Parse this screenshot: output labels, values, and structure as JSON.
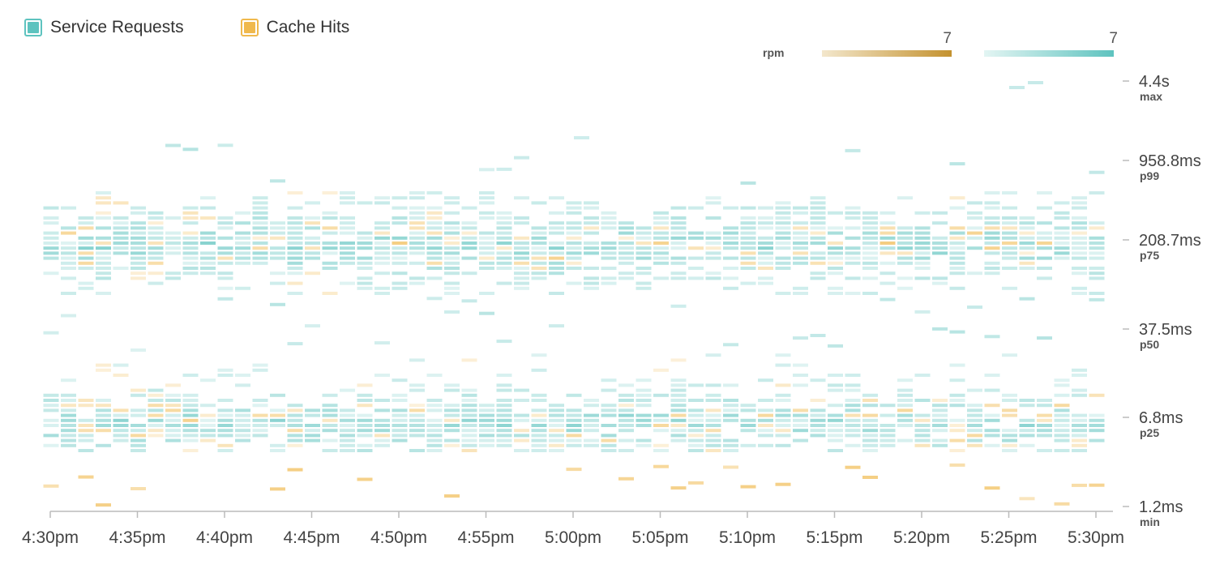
{
  "legend": {
    "series_a": "Service Requests",
    "series_b": "Cache Hits"
  },
  "scale": {
    "unit": "rpm",
    "cache_max": "7",
    "requests_max": "7"
  },
  "colors": {
    "requests": "#5ec3bf",
    "cache": "#f0b94d",
    "axis": "#bbbbbb",
    "text": "#444444"
  },
  "chart_data": {
    "type": "heatmap",
    "title": "",
    "x_ticks": [
      "4:30pm",
      "4:35pm",
      "4:40pm",
      "4:45pm",
      "4:50pm",
      "4:55pm",
      "5:00pm",
      "5:05pm",
      "5:10pm",
      "5:15pm",
      "5:20pm",
      "5:25pm",
      "5:30pm"
    ],
    "x_range": [
      "4:30pm",
      "5:31pm"
    ],
    "y_scale": "log",
    "y_ticks": [
      {
        "value": "4.4s",
        "label": "max"
      },
      {
        "value": "958.8ms",
        "label": "p99"
      },
      {
        "value": "208.7ms",
        "label": "p75"
      },
      {
        "value": "37.5ms",
        "label": "p50"
      },
      {
        "value": "6.8ms",
        "label": "p25"
      },
      {
        "value": "1.2ms",
        "label": "min"
      }
    ],
    "y_range_ms": [
      1.2,
      4400
    ],
    "color_scale_max_rpm": {
      "Service Requests": 7,
      "Cache Hits": 7
    },
    "series": [
      {
        "name": "Service Requests",
        "description": "per-minute latency distribution, dense bands near p75 (~80-300ms) and p25 (~5-12ms)"
      },
      {
        "name": "Cache Hits",
        "description": "per-minute latency distribution, sparse cells mostly in the p25 band and near min (~1.2-2ms)"
      }
    ]
  }
}
